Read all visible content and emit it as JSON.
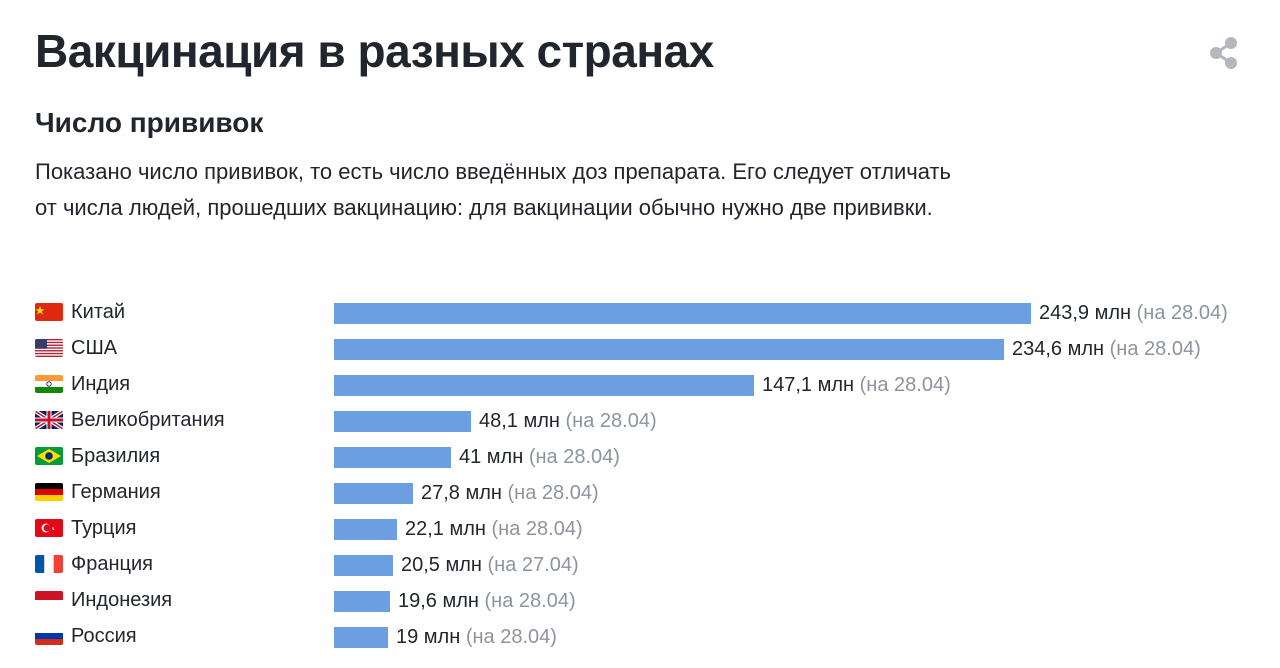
{
  "header": {
    "title": "Вакцинация в разных странах",
    "share_icon": "share-icon"
  },
  "section": {
    "subtitle": "Число прививок",
    "description": "Показано число прививок, то есть число введённых доз препарата. Его следует отличать от числа людей, прошедших вакцинацию: для вакцинации обычно нужно две прививки."
  },
  "colors": {
    "bar": "#6b9fe2",
    "text": "#21262e",
    "muted": "#8d949e"
  },
  "chart_data": {
    "type": "bar",
    "orientation": "horizontal",
    "unit": "млн",
    "categories": [
      "Китай",
      "США",
      "Индия",
      "Великобритания",
      "Бразилия",
      "Германия",
      "Турция",
      "Франция",
      "Индонезия",
      "Россия"
    ],
    "values": [
      243.9,
      234.6,
      147.1,
      48.1,
      41,
      27.8,
      22.1,
      20.5,
      19.6,
      19
    ],
    "value_labels": [
      "243,9 млн",
      "234,6 млн",
      "147,1 млн",
      "48,1 млн",
      "41 млн",
      "27,8 млн",
      "22,1 млн",
      "20,5 млн",
      "19,6 млн",
      "19 млн"
    ],
    "dates": [
      "(на 28.04)",
      "(на 28.04)",
      "(на 28.04)",
      "(на 28.04)",
      "(на 28.04)",
      "(на 28.04)",
      "(на 28.04)",
      "(на 27.04)",
      "(на 28.04)",
      "(на 28.04)"
    ],
    "flags": [
      "cn",
      "us",
      "in",
      "gb",
      "br",
      "de",
      "tr",
      "fr",
      "id",
      "ru"
    ],
    "xlim": [
      0,
      243.9
    ]
  }
}
